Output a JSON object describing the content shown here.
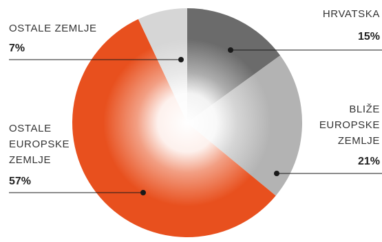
{
  "chart_data": {
    "type": "pie",
    "slices": [
      {
        "label_lines": [
          "HRVATSKA"
        ],
        "value": 15,
        "value_label": "15%",
        "color": "#6b6b6b"
      },
      {
        "label_lines": [
          "BLIŽE",
          "EUROPSKE",
          "ZEMLJE"
        ],
        "value": 21,
        "value_label": "21%",
        "color": "#b3b3b3"
      },
      {
        "label_lines": [
          "OSTALE",
          "EUROPSKE",
          "ZEMLJE"
        ],
        "value": 57,
        "value_label": "57%",
        "color": "#e8501e"
      },
      {
        "label_lines": [
          "OSTALE ZEMLJE"
        ],
        "value": 7,
        "value_label": "7%",
        "color": "#d6d6d6"
      }
    ],
    "start_angle_deg": 0,
    "center_highlight": "white radial glow",
    "leader_color": "#1a1a1a"
  }
}
